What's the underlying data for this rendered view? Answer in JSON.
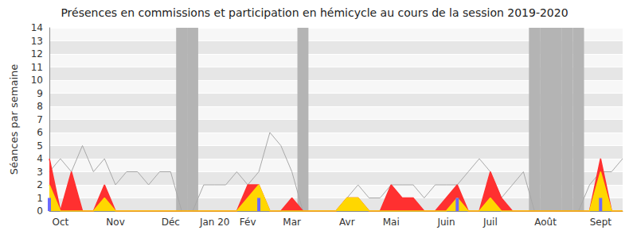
{
  "chart_data": {
    "type": "line",
    "title": "Présences en commissions et participation en hémicycle au cours de la session 2019-2020",
    "y_label": "Séances par semaine",
    "categories": [
      null,
      "Oct",
      null,
      null,
      null,
      null,
      "Nov",
      null,
      null,
      null,
      null,
      "Déc",
      null,
      null,
      null,
      "Jan 20",
      null,
      null,
      "Fév",
      null,
      null,
      null,
      "Mar",
      null,
      null,
      null,
      null,
      "Avr",
      null,
      null,
      null,
      "Mai",
      null,
      null,
      null,
      null,
      "Juin",
      null,
      null,
      null,
      "Juil",
      null,
      null,
      null,
      null,
      "Août",
      null,
      null,
      null,
      null,
      "Sept",
      null,
      null
    ],
    "ylim": [
      0,
      14
    ],
    "yticks": [
      0,
      1,
      2,
      3,
      4,
      5,
      6,
      7,
      8,
      9,
      10,
      11,
      12,
      13,
      14
    ],
    "grid": true,
    "series": [
      {
        "type": "bar",
        "color": "#b4b4b4",
        "values": [
          null,
          null,
          null,
          null,
          null,
          null,
          null,
          null,
          null,
          null,
          null,
          null,
          14,
          14,
          null,
          null,
          null,
          null,
          null,
          null,
          null,
          null,
          null,
          14,
          null,
          null,
          null,
          null,
          null,
          null,
          null,
          null,
          null,
          null,
          null,
          null,
          null,
          null,
          null,
          null,
          null,
          null,
          null,
          null,
          14,
          14,
          14,
          14,
          14,
          null,
          null,
          null,
          null
        ]
      },
      {
        "type": "line",
        "color": "#a8a8a8",
        "values": [
          3,
          4,
          3,
          5,
          3,
          4,
          2,
          3,
          3,
          2,
          3,
          3,
          0,
          0,
          2,
          2,
          2,
          3,
          2,
          3,
          6,
          5,
          3,
          0,
          0,
          0,
          0,
          1,
          2,
          1,
          1,
          2,
          2,
          2,
          1,
          2,
          2,
          2,
          3,
          4,
          3,
          1,
          2,
          3,
          0,
          0,
          0,
          0,
          0,
          2,
          3,
          3,
          4
        ]
      },
      {
        "type": "area",
        "color": "#ff3030",
        "values": [
          4,
          0,
          3,
          0,
          0,
          2,
          0,
          0,
          0,
          0,
          0,
          0,
          0,
          0,
          0,
          0,
          0,
          0,
          2,
          2,
          0,
          0,
          1,
          0,
          0,
          0,
          0,
          1,
          1,
          0,
          0,
          2,
          1,
          1,
          0,
          0,
          1,
          2,
          0,
          0,
          3,
          1,
          0,
          0,
          0,
          0,
          0,
          0,
          0,
          0,
          4,
          0,
          0
        ]
      },
      {
        "type": "area",
        "color": "#ffd700",
        "values": [
          2,
          0,
          0,
          0,
          0,
          1,
          0,
          0,
          0,
          0,
          0,
          0,
          0,
          0,
          0,
          0,
          0,
          0,
          1,
          2,
          0,
          0,
          0,
          0,
          0,
          0,
          0,
          1,
          1,
          0,
          0,
          0,
          0,
          0,
          0,
          0,
          0,
          1,
          0,
          0,
          1,
          0,
          0,
          0,
          0,
          0,
          0,
          0,
          0,
          0,
          3,
          0,
          0
        ]
      },
      {
        "type": "bar",
        "color": "#6a6aff",
        "values": [
          1,
          0,
          0,
          0,
          0,
          0,
          0,
          0,
          0,
          0,
          0,
          0,
          0,
          0,
          0,
          0,
          0,
          0,
          0,
          1,
          0,
          0,
          0,
          0,
          0,
          0,
          0,
          0,
          0,
          0,
          0,
          0,
          0,
          0,
          0,
          0,
          0,
          1,
          0,
          0,
          0,
          0,
          0,
          0,
          0,
          0,
          0,
          0,
          0,
          0,
          1,
          0,
          0
        ]
      }
    ]
  }
}
